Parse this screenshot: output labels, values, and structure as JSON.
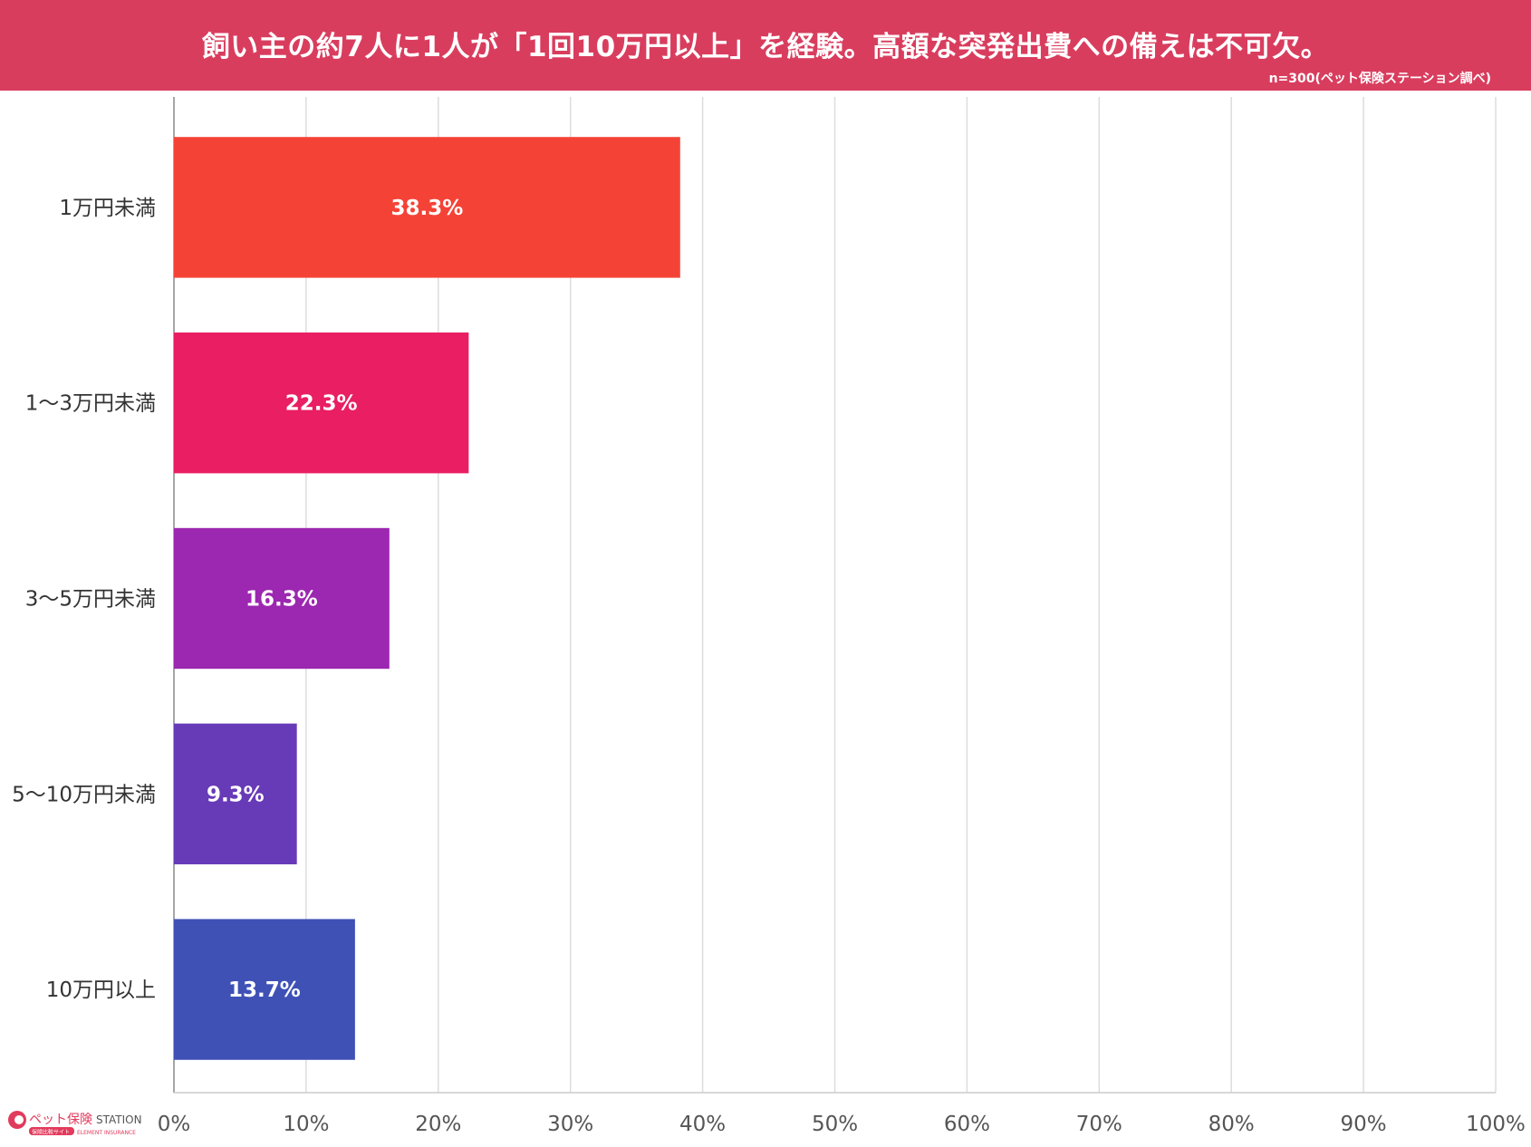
{
  "header": {
    "title": "飼い主の約7人に1人が「1回10万円以上」を経験。高額な突発出費への備えは不可欠。",
    "note": "n=300(ペット保険ステーション調べ)"
  },
  "logo": {
    "brand": "ペット保険",
    "brand_en": "STATION",
    "tagline": "保険比較サイト",
    "company": "ELEMENT INSURANCE",
    "color": "#e23a5c"
  },
  "chart_data": {
    "type": "bar",
    "orientation": "horizontal",
    "categories": [
      "1万円未満",
      "1〜3万円未満",
      "3〜5万円未満",
      "5〜10万円未満",
      "10万円以上"
    ],
    "values": [
      38.3,
      22.3,
      16.3,
      9.3,
      13.7
    ],
    "value_labels": [
      "38.3%",
      "22.3%",
      "16.3%",
      "9.3%",
      "13.7%"
    ],
    "colors": [
      "#f44336",
      "#e91e63",
      "#9c27b0",
      "#673ab7",
      "#3f51b5"
    ],
    "xlim": [
      0,
      100
    ],
    "x_ticks": [
      0,
      10,
      20,
      30,
      40,
      50,
      60,
      70,
      80,
      90,
      100
    ],
    "x_tick_labels": [
      "0%",
      "10%",
      "20%",
      "30%",
      "40%",
      "50%",
      "60%",
      "70%",
      "80%",
      "90%",
      "100%"
    ],
    "grid": true,
    "legend": "none"
  }
}
